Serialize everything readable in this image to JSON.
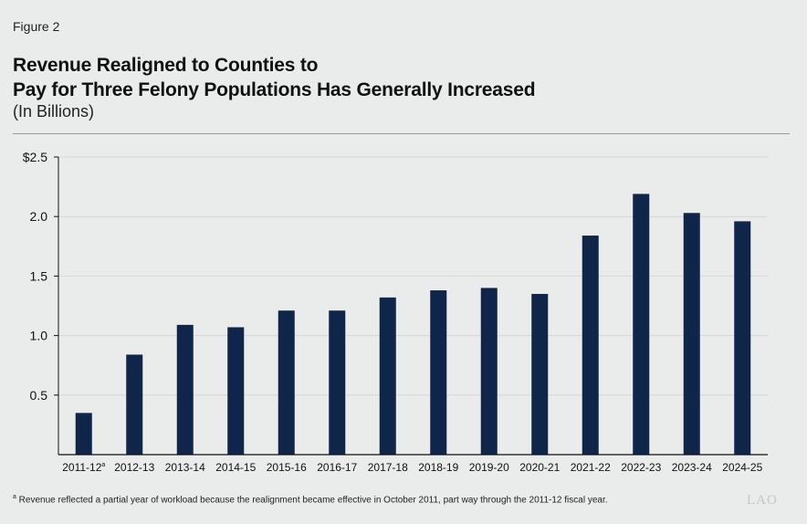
{
  "figure_label": "Figure 2",
  "title_line1": "Revenue Realigned to Counties to",
  "title_line2": "Pay for Three Felony Populations Has Generally Increased",
  "subtitle": "(In Billions)",
  "footnote_marker": "a",
  "footnote_text": " Revenue reflected a partial year of workload because the realignment became effective in October 2011, part way through the 2011-12 fiscal year.",
  "logo_text": "LAO",
  "colors": {
    "bar": "#0f2549",
    "background": "#eaebeb",
    "grid": "#d6d8d9",
    "axis": "#111111"
  },
  "chart_data": {
    "type": "bar",
    "title": "Revenue Realigned to Counties to Pay for Three Felony Populations Has Generally Increased",
    "subtitle": "(In Billions)",
    "categories": [
      "2011-12",
      "2012-13",
      "2013-14",
      "2014-15",
      "2015-16",
      "2016-17",
      "2017-18",
      "2018-19",
      "2019-20",
      "2020-21",
      "2021-22",
      "2022-23",
      "2023-24",
      "2024-25"
    ],
    "category_superscripts": [
      "a",
      "",
      "",
      "",
      "",
      "",
      "",
      "",
      "",
      "",
      "",
      "",
      "",
      ""
    ],
    "values": [
      0.35,
      0.84,
      1.09,
      1.07,
      1.21,
      1.21,
      1.32,
      1.38,
      1.4,
      1.35,
      1.84,
      2.19,
      2.03,
      1.96
    ],
    "ylim": [
      0,
      2.5
    ],
    "yticks": [
      0.5,
      1.0,
      1.5,
      2.0,
      2.5
    ],
    "ytick_labels": [
      "0.5",
      "1.0",
      "1.5",
      "2.0",
      "$2.5"
    ],
    "grid": true,
    "xlabel": "",
    "ylabel": ""
  }
}
